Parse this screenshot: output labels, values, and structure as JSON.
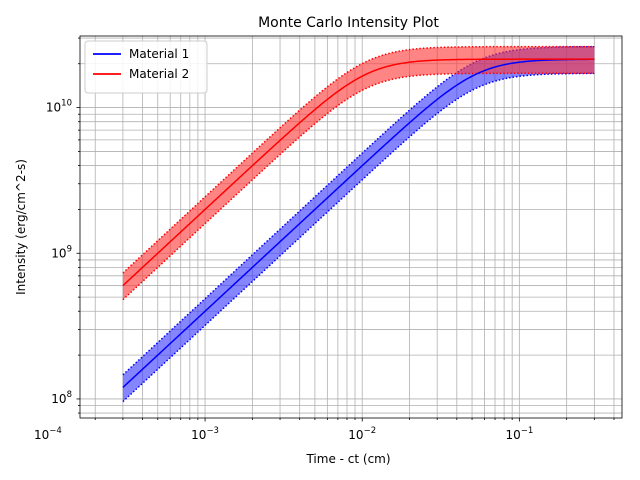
{
  "chart_data": {
    "type": "line",
    "title": "Monte Carlo Intensity Plot",
    "xlabel": "Time - ct (cm)",
    "ylabel": "Intensity (erg/cm^2-s)",
    "xscale": "log",
    "yscale": "log",
    "xlim": [
      0.00016,
      0.45
    ],
    "ylim": [
      74000000.0,
      31000000000.0
    ],
    "grid": true,
    "grid_minor": true,
    "legend_position": "top-left",
    "x_ticks": [
      {
        "value": 0.0001,
        "base": "10",
        "exp": "−4"
      },
      {
        "value": 0.001,
        "base": "10",
        "exp": "−3"
      },
      {
        "value": 0.01,
        "base": "10",
        "exp": "−2"
      },
      {
        "value": 0.1,
        "base": "10",
        "exp": "−1"
      }
    ],
    "y_ticks": [
      {
        "value": 100000000,
        "base": "10",
        "exp": "8"
      },
      {
        "value": 1000000000,
        "base": "10",
        "exp": "9"
      },
      {
        "value": 10000000000,
        "base": "10",
        "exp": "10"
      }
    ],
    "series": [
      {
        "name": "Material 1",
        "color": "#0000ff",
        "band_color": "#3333ff",
        "x_range": [
          0.0003,
          0.3
        ],
        "y_start": 120000000.0,
        "plateau": 21500000000.0,
        "band_low_factor": 0.8,
        "band_high_factor": 1.22
      },
      {
        "name": "Material 2",
        "color": "#ff0000",
        "band_color": "#ff3333",
        "x_range": [
          0.0003,
          0.3
        ],
        "y_start": 600000000.0,
        "plateau": 21500000000.0,
        "band_low_factor": 0.8,
        "band_high_factor": 1.22
      }
    ]
  }
}
